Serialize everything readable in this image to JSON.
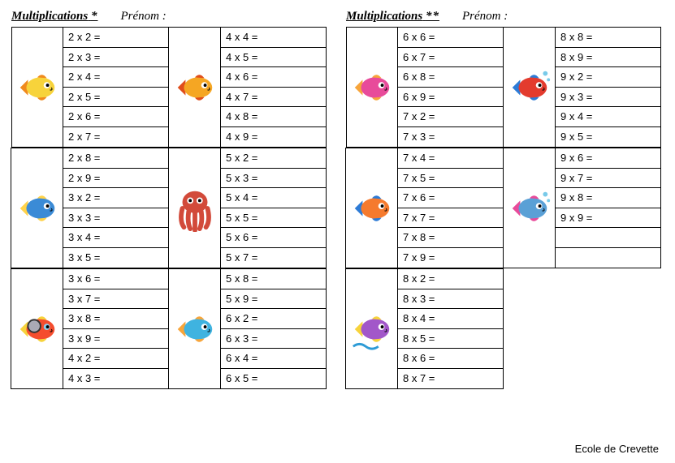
{
  "footer": "Ecole de Crevette",
  "sheets": [
    {
      "title": "Multiplications",
      "stars": "*",
      "prenom_label": "Prénom  :",
      "blocks": [
        {
          "creature": "fish-yellow",
          "problems": [
            "2 x 2 =",
            "2 x 3 =",
            "2 x 4 =",
            "2 x 5 =",
            "2 x 6 =",
            "2 x 7 ="
          ]
        },
        {
          "creature": "fish-orange",
          "problems": [
            "4 x 4 =",
            "4 x 5 =",
            "4 x 6 =",
            "4 x 7 =",
            "4 x 8 =",
            "4 x 9 ="
          ]
        },
        {
          "creature": "fish-bluefin",
          "problems": [
            "2 x 8 =",
            "2 x 9 =",
            "3 x 2 =",
            "3 x 3 =",
            "3 x 4 =",
            "3 x 5 ="
          ]
        },
        {
          "creature": "octopus",
          "problems": [
            "5 x 2 =",
            "5 x 3 =",
            "5 x 4 =",
            "5 x 5 =",
            "5 x 6 =",
            "5 x 7 ="
          ]
        },
        {
          "creature": "fish-goggles",
          "problems": [
            "3 x 6 =",
            "3 x 7 =",
            "3 x 8 =",
            "3 x 9 =",
            "4 x 2 =",
            "4 x 3 ="
          ]
        },
        {
          "creature": "fish-round",
          "problems": [
            "5 x 8 =",
            "5 x 9 =",
            "6 x 2 =",
            "6 x 3 =",
            "6 x 4 =",
            "6 x 5 ="
          ]
        }
      ],
      "rows": [
        [
          0,
          1
        ],
        [
          2,
          3
        ],
        [
          4,
          5
        ]
      ]
    },
    {
      "title": "Multiplications",
      "stars": "**",
      "prenom_label": "Prénom  :",
      "blocks": [
        {
          "creature": "fish-pink",
          "problems": [
            "6 x 6 =",
            "6 x 7 =",
            "6 x 8 =",
            "6 x 9 =",
            "7 x 2 =",
            "7 x 3 ="
          ]
        },
        {
          "creature": "fish-red",
          "problems": [
            "8 x 8 =",
            "8 x 9 =",
            "9 x 2 =",
            "9 x 3 =",
            "9 x 4 =",
            "9 x 5 ="
          ]
        },
        {
          "creature": "fish-clown",
          "problems": [
            "7 x 4 =",
            "7 x 5 =",
            "7 x 6 =",
            "7 x 7 =",
            "7 x 8 =",
            "7 x 9 ="
          ]
        },
        {
          "creature": "fish-rainbow",
          "problems": [
            "9 x 6 =",
            "9 x 7 =",
            "9 x 8 =",
            "9 x 9 =",
            "",
            ""
          ]
        },
        {
          "creature": "fish-splash",
          "problems": [
            "8 x 2 =",
            "8 x 3 =",
            "8 x 4 =",
            "8 x 5 =",
            "8 x 6 =",
            "8 x 7 ="
          ]
        }
      ],
      "rows": [
        [
          0,
          1
        ],
        [
          2,
          3
        ],
        [
          4,
          null
        ]
      ]
    }
  ],
  "creature_svgs": {
    "fish-yellow": {
      "body": "#f7d33b",
      "fin": "#f08a1d",
      "eye": "#ffffff"
    },
    "fish-orange": {
      "body": "#f5a623",
      "fin": "#e04e1b",
      "eye": "#ffffff"
    },
    "fish-bluefin": {
      "body": "#3b8bd6",
      "fin": "#ffd24a",
      "eye": "#ffffff"
    },
    "octopus": {
      "body": "#d24a3a",
      "fin": "#b43526",
      "eye": "#ffffff"
    },
    "fish-goggles": {
      "body": "#f54d2e",
      "fin": "#f7d33b",
      "eye": "#8ad0f0"
    },
    "fish-round": {
      "body": "#3fb3e0",
      "fin": "#f7a53b",
      "eye": "#ffffff"
    },
    "fish-pink": {
      "body": "#e84b9a",
      "fin": "#f7a53b",
      "eye": "#ffffff"
    },
    "fish-red": {
      "body": "#e33b2e",
      "fin": "#2d7bd6",
      "eye": "#ffffff"
    },
    "fish-clown": {
      "body": "#f57a2e",
      "fin": "#2d7bd6",
      "eye": "#ffffff"
    },
    "fish-rainbow": {
      "body": "#5aa0d6",
      "fin": "#e84b9a",
      "eye": "#ffffff"
    },
    "fish-splash": {
      "body": "#a257c9",
      "fin": "#f7d33b",
      "eye": "#ffffff"
    }
  }
}
